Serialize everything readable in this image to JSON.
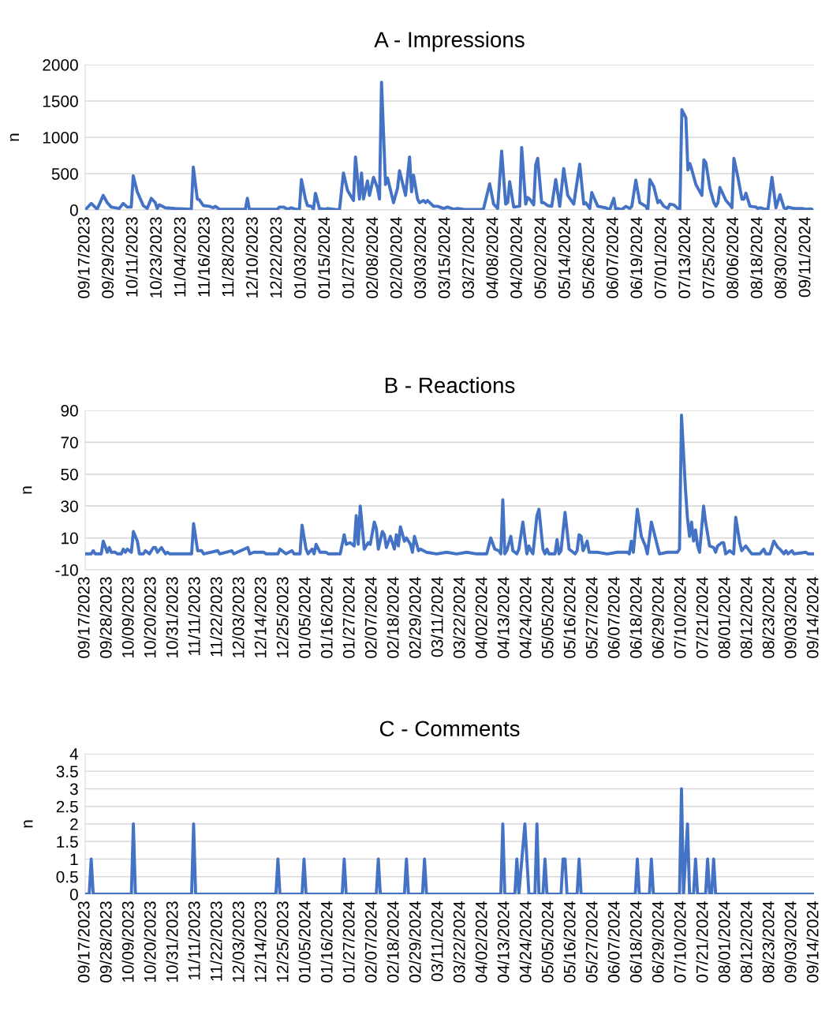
{
  "chart_data": [
    {
      "type": "line",
      "title": "A - Impressions",
      "ylabel": "n",
      "grid": "y",
      "xlim": [
        "2023-09-17",
        "2024-09-15"
      ],
      "ylim": [
        0,
        2000
      ],
      "yticks": [
        0,
        500,
        1000,
        1500,
        2000
      ],
      "xticks": [
        {
          "value": "2023-09-17",
          "label": "09/17/2023"
        },
        {
          "value": "2023-09-29",
          "label": "09/29/2023"
        },
        {
          "value": "2023-10-11",
          "label": "10/11/2023"
        },
        {
          "value": "2023-10-23",
          "label": "10/23/2023"
        },
        {
          "value": "2023-11-04",
          "label": "11/04/2023"
        },
        {
          "value": "2023-11-16",
          "label": "11/16/2023"
        },
        {
          "value": "2023-11-28",
          "label": "11/28/2023"
        },
        {
          "value": "2023-12-10",
          "label": "12/10/2023"
        },
        {
          "value": "2023-12-22",
          "label": "12/22/2023"
        },
        {
          "value": "2024-01-03",
          "label": "01/03/2024"
        },
        {
          "value": "2024-01-15",
          "label": "01/15/2024"
        },
        {
          "value": "2024-01-27",
          "label": "01/27/2024"
        },
        {
          "value": "2024-02-08",
          "label": "02/08/2024"
        },
        {
          "value": "2024-02-20",
          "label": "02/20/2024"
        },
        {
          "value": "2024-03-03",
          "label": "03/03/2024"
        },
        {
          "value": "2024-03-15",
          "label": "03/15/2024"
        },
        {
          "value": "2024-03-27",
          "label": "03/27/2024"
        },
        {
          "value": "2024-04-08",
          "label": "04/08/2024"
        },
        {
          "value": "2024-04-20",
          "label": "04/20/2024"
        },
        {
          "value": "2024-05-02",
          "label": "05/02/2024"
        },
        {
          "value": "2024-05-14",
          "label": "05/14/2024"
        },
        {
          "value": "2024-05-26",
          "label": "05/26/2024"
        },
        {
          "value": "2024-06-07",
          "label": "06/07/2024"
        },
        {
          "value": "2024-06-19",
          "label": "06/19/2024"
        },
        {
          "value": "2024-07-01",
          "label": "07/01/2024"
        },
        {
          "value": "2024-07-13",
          "label": "07/13/2024"
        },
        {
          "value": "2024-07-25",
          "label": "07/25/2024"
        },
        {
          "value": "2024-08-06",
          "label": "08/06/2024"
        },
        {
          "value": "2024-08-18",
          "label": "08/18/2024"
        },
        {
          "value": "2024-08-30",
          "label": "08/30/2024"
        },
        {
          "value": "2024-09-11",
          "label": "09/11/2024"
        }
      ],
      "series": [
        {
          "color": "#4472c4",
          "x": [
            "2023-09-17",
            "2023-09-20",
            "2023-09-23",
            "2023-09-26",
            "2023-09-28",
            "2023-09-30",
            "2023-10-04",
            "2023-10-06",
            "2023-10-08",
            "2023-10-10",
            "2023-10-11",
            "2023-10-13",
            "2023-10-16",
            "2023-10-18",
            "2023-10-20",
            "2023-10-22",
            "2023-10-23",
            "2023-10-24",
            "2023-10-27",
            "2023-11-01",
            "2023-11-09",
            "2023-11-10",
            "2023-11-12",
            "2023-11-13",
            "2023-11-15",
            "2023-11-18",
            "2023-11-20",
            "2023-11-21",
            "2023-11-23",
            "2023-12-06",
            "2023-12-07",
            "2023-12-08",
            "2023-12-22",
            "2023-12-23",
            "2023-12-25",
            "2023-12-27",
            "2023-12-29",
            "2023-12-31",
            "2024-01-02",
            "2024-01-03",
            "2024-01-05",
            "2024-01-06",
            "2024-01-08",
            "2024-01-09",
            "2024-01-10",
            "2024-01-12",
            "2024-01-15",
            "2024-01-16",
            "2024-01-19",
            "2024-01-22",
            "2024-01-24",
            "2024-01-26",
            "2024-01-29",
            "2024-01-30",
            "2024-02-01",
            "2024-02-02",
            "2024-02-03",
            "2024-02-05",
            "2024-02-06",
            "2024-02-08",
            "2024-02-10",
            "2024-02-11",
            "2024-02-12",
            "2024-02-14",
            "2024-02-15",
            "2024-02-18",
            "2024-02-20",
            "2024-02-21",
            "2024-02-24",
            "2024-02-26",
            "2024-02-27",
            "2024-02-28",
            "2024-03-01",
            "2024-03-02",
            "2024-03-04",
            "2024-03-05",
            "2024-03-06",
            "2024-03-09",
            "2024-03-11",
            "2024-03-14",
            "2024-03-16",
            "2024-03-19",
            "2024-03-21",
            "2024-03-24",
            "2024-04-02",
            "2024-04-03",
            "2024-04-06",
            "2024-04-08",
            "2024-04-10",
            "2024-04-12",
            "2024-04-14",
            "2024-04-15",
            "2024-04-16",
            "2024-04-18",
            "2024-04-21",
            "2024-04-22",
            "2024-04-24",
            "2024-04-25",
            "2024-04-26",
            "2024-04-28",
            "2024-04-29",
            "2024-04-30",
            "2024-05-02",
            "2024-05-03",
            "2024-05-05",
            "2024-05-07",
            "2024-05-09",
            "2024-05-11",
            "2024-05-13",
            "2024-05-15",
            "2024-05-18",
            "2024-05-20",
            "2024-05-21",
            "2024-05-23",
            "2024-05-24",
            "2024-05-26",
            "2024-05-27",
            "2024-05-30",
            "2024-06-03",
            "2024-06-05",
            "2024-06-07",
            "2024-06-08",
            "2024-06-09",
            "2024-06-11",
            "2024-06-13",
            "2024-06-15",
            "2024-06-16",
            "2024-06-18",
            "2024-06-20",
            "2024-06-23",
            "2024-06-24",
            "2024-06-25",
            "2024-06-27",
            "2024-06-29",
            "2024-06-30",
            "2024-07-02",
            "2024-07-04",
            "2024-07-05",
            "2024-07-07",
            "2024-07-09",
            "2024-07-10",
            "2024-07-11",
            "2024-07-13",
            "2024-07-14",
            "2024-07-15",
            "2024-07-16",
            "2024-07-18",
            "2024-07-19",
            "2024-07-21",
            "2024-07-22",
            "2024-07-23",
            "2024-07-25",
            "2024-07-27",
            "2024-07-28",
            "2024-07-29",
            "2024-07-30",
            "2024-08-02",
            "2024-08-04",
            "2024-08-05",
            "2024-08-06",
            "2024-08-08",
            "2024-08-10",
            "2024-08-11",
            "2024-08-12",
            "2024-08-14",
            "2024-08-17",
            "2024-08-18",
            "2024-08-19",
            "2024-08-21",
            "2024-08-23",
            "2024-08-25",
            "2024-08-27",
            "2024-08-29",
            "2024-08-31",
            "2024-09-01",
            "2024-09-02",
            "2024-09-05",
            "2024-09-09",
            "2024-09-11",
            "2024-09-13",
            "2024-09-14"
          ],
          "values": [
            0,
            90,
            10,
            200,
            100,
            40,
            20,
            90,
            40,
            40,
            470,
            250,
            60,
            20,
            160,
            100,
            20,
            70,
            30,
            20,
            10,
            590,
            150,
            140,
            60,
            50,
            30,
            50,
            10,
            10,
            160,
            10,
            10,
            40,
            40,
            10,
            30,
            10,
            10,
            420,
            150,
            60,
            50,
            10,
            230,
            20,
            10,
            20,
            10,
            0,
            510,
            270,
            130,
            730,
            150,
            510,
            150,
            400,
            200,
            450,
            300,
            150,
            1760,
            350,
            440,
            100,
            300,
            540,
            200,
            730,
            250,
            480,
            150,
            100,
            130,
            100,
            130,
            50,
            50,
            20,
            40,
            10,
            20,
            10,
            5,
            20,
            360,
            80,
            20,
            810,
            80,
            100,
            390,
            40,
            50,
            860,
            80,
            170,
            150,
            70,
            620,
            710,
            100,
            100,
            60,
            50,
            420,
            50,
            570,
            200,
            80,
            450,
            630,
            80,
            100,
            20,
            240,
            50,
            30,
            5,
            160,
            0,
            20,
            5,
            50,
            20,
            50,
            410,
            100,
            50,
            0,
            420,
            320,
            100,
            130,
            50,
            20,
            80,
            70,
            20,
            0,
            1380,
            1270,
            550,
            640,
            550,
            350,
            300,
            200,
            690,
            650,
            300,
            100,
            50,
            100,
            310,
            130,
            70,
            30,
            710,
            450,
            150,
            150,
            230,
            50,
            40,
            20,
            30,
            15,
            10,
            450,
            30,
            210,
            30,
            10,
            40,
            20,
            20,
            10,
            15,
            10
          ]
        }
      ]
    },
    {
      "type": "line",
      "title": "B - Reactions",
      "ylabel": "n",
      "grid": "y",
      "xlim": [
        "2023-09-17",
        "2024-09-14"
      ],
      "ylim": [
        -10,
        90
      ],
      "yticks": [
        -10,
        10,
        30,
        50,
        70,
        90
      ],
      "xticks": [
        {
          "value": "2023-09-17",
          "label": "09/17/2023"
        },
        {
          "value": "2023-09-28",
          "label": "09/28/2023"
        },
        {
          "value": "2023-10-09",
          "label": "10/09/2023"
        },
        {
          "value": "2023-10-20",
          "label": "10/20/2023"
        },
        {
          "value": "2023-10-31",
          "label": "10/31/2023"
        },
        {
          "value": "2023-11-11",
          "label": "11/11/2023"
        },
        {
          "value": "2023-11-22",
          "label": "11/22/2023"
        },
        {
          "value": "2023-12-03",
          "label": "12/03/2023"
        },
        {
          "value": "2023-12-14",
          "label": "12/14/2023"
        },
        {
          "value": "2023-12-25",
          "label": "12/25/2023"
        },
        {
          "value": "2024-01-05",
          "label": "01/05/2024"
        },
        {
          "value": "2024-01-16",
          "label": "01/16/2024"
        },
        {
          "value": "2024-01-27",
          "label": "01/27/2024"
        },
        {
          "value": "2024-02-07",
          "label": "02/07/2024"
        },
        {
          "value": "2024-02-18",
          "label": "02/18/2024"
        },
        {
          "value": "2024-02-29",
          "label": "02/29/2024"
        },
        {
          "value": "2024-03-11",
          "label": "03/11/2024"
        },
        {
          "value": "2024-03-22",
          "label": "03/22/2024"
        },
        {
          "value": "2024-04-02",
          "label": "04/02/2024"
        },
        {
          "value": "2024-04-13",
          "label": "04/13/2024"
        },
        {
          "value": "2024-04-24",
          "label": "04/24/2024"
        },
        {
          "value": "2024-05-05",
          "label": "05/05/2024"
        },
        {
          "value": "2024-05-16",
          "label": "05/16/2024"
        },
        {
          "value": "2024-05-27",
          "label": "05/27/2024"
        },
        {
          "value": "2024-06-07",
          "label": "06/07/2024"
        },
        {
          "value": "2024-06-18",
          "label": "06/18/2024"
        },
        {
          "value": "2024-06-29",
          "label": "06/29/2024"
        },
        {
          "value": "2024-07-10",
          "label": "07/10/2024"
        },
        {
          "value": "2024-07-21",
          "label": "07/21/2024"
        },
        {
          "value": "2024-08-01",
          "label": "08/01/2024"
        },
        {
          "value": "2024-08-12",
          "label": "08/12/2024"
        },
        {
          "value": "2024-08-23",
          "label": "08/23/2024"
        },
        {
          "value": "2024-09-03",
          "label": "09/03/2024"
        },
        {
          "value": "2024-09-14",
          "label": "09/14/2024"
        }
      ],
      "series": [
        {
          "color": "#4472c4",
          "x": [
            "2023-09-17",
            "2023-09-20",
            "2023-09-21",
            "2023-09-22",
            "2023-09-25",
            "2023-09-26",
            "2023-09-28",
            "2023-09-29",
            "2023-09-30",
            "2023-10-02",
            "2023-10-03",
            "2023-10-05",
            "2023-10-06",
            "2023-10-07",
            "2023-10-08",
            "2023-10-10",
            "2023-10-11",
            "2023-10-13",
            "2023-10-14",
            "2023-10-16",
            "2023-10-17",
            "2023-10-19",
            "2023-10-21",
            "2023-10-22",
            "2023-10-23",
            "2023-10-25",
            "2023-10-27",
            "2023-10-28",
            "2023-10-29",
            "2023-11-09",
            "2023-11-10",
            "2023-11-12",
            "2023-11-14",
            "2023-11-15",
            "2023-11-22",
            "2023-11-23",
            "2023-11-29",
            "2023-11-30",
            "2023-12-07",
            "2023-12-08",
            "2023-12-10",
            "2023-12-12",
            "2023-12-15",
            "2023-12-16",
            "2023-12-22",
            "2023-12-23",
            "2023-12-25",
            "2023-12-26",
            "2023-12-29",
            "2023-12-30",
            "2024-01-02",
            "2024-01-03",
            "2024-01-05",
            "2024-01-06",
            "2024-01-08",
            "2024-01-09",
            "2024-01-10",
            "2024-01-12",
            "2024-01-15",
            "2024-01-16",
            "2024-01-22",
            "2024-01-24",
            "2024-01-25",
            "2024-01-27",
            "2024-01-29",
            "2024-01-30",
            "2024-01-31",
            "2024-02-01",
            "2024-02-03",
            "2024-02-05",
            "2024-02-06",
            "2024-02-08",
            "2024-02-09",
            "2024-02-10",
            "2024-02-12",
            "2024-02-13",
            "2024-02-14",
            "2024-02-16",
            "2024-02-18",
            "2024-02-19",
            "2024-02-20",
            "2024-02-21",
            "2024-02-23",
            "2024-02-24",
            "2024-02-26",
            "2024-02-27",
            "2024-02-28",
            "2024-03-01",
            "2024-03-02",
            "2024-03-05",
            "2024-03-10",
            "2024-03-15",
            "2024-03-20",
            "2024-03-25",
            "2024-03-30",
            "2024-04-04",
            "2024-04-06",
            "2024-04-08",
            "2024-04-10",
            "2024-04-11",
            "2024-04-12",
            "2024-04-13",
            "2024-04-14",
            "2024-04-16",
            "2024-04-17",
            "2024-04-19",
            "2024-04-20",
            "2024-04-22",
            "2024-04-24",
            "2024-04-25",
            "2024-04-26",
            "2024-04-27",
            "2024-04-29",
            "2024-04-30",
            "2024-05-02",
            "2024-05-03",
            "2024-05-04",
            "2024-05-05",
            "2024-05-08",
            "2024-05-09",
            "2024-05-10",
            "2024-05-11",
            "2024-05-13",
            "2024-05-15",
            "2024-05-18",
            "2024-05-19",
            "2024-05-20",
            "2024-05-21",
            "2024-05-22",
            "2024-05-24",
            "2024-05-25",
            "2024-05-29",
            "2024-06-03",
            "2024-06-08",
            "2024-06-13",
            "2024-06-14",
            "2024-06-15",
            "2024-06-16",
            "2024-06-18",
            "2024-06-20",
            "2024-06-22",
            "2024-06-23",
            "2024-06-25",
            "2024-06-27",
            "2024-06-29",
            "2024-07-03",
            "2024-07-08",
            "2024-07-09",
            "2024-07-10",
            "2024-07-12",
            "2024-07-13",
            "2024-07-14",
            "2024-07-15",
            "2024-07-16",
            "2024-07-17",
            "2024-07-18",
            "2024-07-19",
            "2024-07-21",
            "2024-07-22",
            "2024-07-24",
            "2024-07-26",
            "2024-07-27",
            "2024-07-28",
            "2024-07-30",
            "2024-07-31",
            "2024-08-01",
            "2024-08-03",
            "2024-08-05",
            "2024-08-06",
            "2024-08-08",
            "2024-08-09",
            "2024-08-11",
            "2024-08-14",
            "2024-08-18",
            "2024-08-20",
            "2024-08-21",
            "2024-08-23",
            "2024-08-25",
            "2024-08-27",
            "2024-08-28",
            "2024-08-30",
            "2024-08-31",
            "2024-09-01",
            "2024-09-03",
            "2024-09-04",
            "2024-09-10",
            "2024-09-11",
            "2024-09-14"
          ],
          "values": [
            0,
            0,
            2,
            0,
            0,
            8,
            1,
            4,
            1,
            1,
            0,
            0,
            3,
            1,
            3,
            1,
            14,
            8,
            0,
            0,
            2,
            0,
            4,
            4,
            1,
            4,
            0,
            1,
            0,
            0,
            19,
            2,
            2,
            0,
            2,
            0,
            2,
            0,
            4,
            0,
            1,
            1,
            1,
            0,
            0,
            3,
            1,
            0,
            2,
            0,
            0,
            18,
            3,
            0,
            3,
            0,
            6,
            1,
            1,
            0,
            0,
            12,
            6,
            7,
            5,
            24,
            6,
            30,
            3,
            7,
            6,
            20,
            16,
            3,
            14,
            12,
            4,
            11,
            3,
            12,
            5,
            17,
            8,
            10,
            6,
            1,
            11,
            2,
            3,
            1,
            0,
            1,
            0,
            1,
            0,
            0,
            10,
            3,
            2,
            0,
            34,
            0,
            2,
            11,
            2,
            0,
            3,
            20,
            0,
            5,
            2,
            0,
            24,
            28,
            3,
            0,
            3,
            0,
            0,
            9,
            0,
            2,
            26,
            3,
            0,
            2,
            12,
            11,
            2,
            8,
            1,
            1,
            0,
            1,
            1,
            0,
            8,
            1,
            28,
            11,
            5,
            0,
            20,
            10,
            0,
            1,
            1,
            3,
            87,
            40,
            22,
            11,
            20,
            8,
            15,
            5,
            1,
            30,
            20,
            5,
            4,
            1,
            5,
            7,
            7,
            0,
            2,
            0,
            23,
            7,
            2,
            5,
            0,
            0,
            3,
            0,
            0,
            8,
            4,
            3,
            0,
            2,
            0,
            2,
            0,
            1,
            0,
            0
          ]
        }
      ]
    },
    {
      "type": "line",
      "title": "C - Comments",
      "ylabel": "n",
      "grid": "y",
      "xlim": [
        "2023-09-17",
        "2024-09-14"
      ],
      "ylim": [
        0,
        4
      ],
      "yticks": [
        0,
        0.5,
        1,
        1.5,
        2,
        2.5,
        3,
        3.5,
        4
      ],
      "xticks": [
        {
          "value": "2023-09-17",
          "label": "09/17/2023"
        },
        {
          "value": "2023-09-28",
          "label": "09/28/2023"
        },
        {
          "value": "2023-10-09",
          "label": "10/09/2023"
        },
        {
          "value": "2023-10-20",
          "label": "10/20/2023"
        },
        {
          "value": "2023-10-31",
          "label": "10/31/2023"
        },
        {
          "value": "2023-11-11",
          "label": "11/11/2023"
        },
        {
          "value": "2023-11-22",
          "label": "11/22/2023"
        },
        {
          "value": "2023-12-03",
          "label": "12/03/2023"
        },
        {
          "value": "2023-12-14",
          "label": "12/14/2023"
        },
        {
          "value": "2023-12-25",
          "label": "12/25/2023"
        },
        {
          "value": "2024-01-05",
          "label": "01/05/2024"
        },
        {
          "value": "2024-01-16",
          "label": "01/16/2024"
        },
        {
          "value": "2024-01-27",
          "label": "01/27/2024"
        },
        {
          "value": "2024-02-07",
          "label": "02/07/2024"
        },
        {
          "value": "2024-02-18",
          "label": "02/18/2024"
        },
        {
          "value": "2024-02-29",
          "label": "02/29/2024"
        },
        {
          "value": "2024-03-11",
          "label": "03/11/2024"
        },
        {
          "value": "2024-03-22",
          "label": "03/22/2024"
        },
        {
          "value": "2024-04-02",
          "label": "04/02/2024"
        },
        {
          "value": "2024-04-13",
          "label": "04/13/2024"
        },
        {
          "value": "2024-04-24",
          "label": "04/24/2024"
        },
        {
          "value": "2024-05-05",
          "label": "05/05/2024"
        },
        {
          "value": "2024-05-16",
          "label": "05/16/2024"
        },
        {
          "value": "2024-05-27",
          "label": "05/27/2024"
        },
        {
          "value": "2024-06-07",
          "label": "06/07/2024"
        },
        {
          "value": "2024-06-18",
          "label": "06/18/2024"
        },
        {
          "value": "2024-06-29",
          "label": "06/29/2024"
        },
        {
          "value": "2024-07-10",
          "label": "07/10/2024"
        },
        {
          "value": "2024-07-21",
          "label": "07/21/2024"
        },
        {
          "value": "2024-08-01",
          "label": "08/01/2024"
        },
        {
          "value": "2024-08-12",
          "label": "08/12/2024"
        },
        {
          "value": "2024-08-23",
          "label": "08/23/2024"
        },
        {
          "value": "2024-09-03",
          "label": "09/03/2024"
        },
        {
          "value": "2024-09-14",
          "label": "09/14/2024"
        }
      ],
      "series": [
        {
          "color": "#4472c4",
          "x": [
            "2023-09-17",
            "2023-09-19",
            "2023-09-20",
            "2023-09-21",
            "2023-10-10",
            "2023-10-11",
            "2023-10-12",
            "2023-11-09",
            "2023-11-10",
            "2023-11-11",
            "2023-12-21",
            "2023-12-22",
            "2023-12-23",
            "2024-01-03",
            "2024-01-04",
            "2024-01-05",
            "2024-01-23",
            "2024-01-24",
            "2024-01-25",
            "2024-02-09",
            "2024-02-10",
            "2024-02-11",
            "2024-02-23",
            "2024-02-24",
            "2024-02-25",
            "2024-03-03",
            "2024-03-04",
            "2024-03-05",
            "2024-04-11",
            "2024-04-12",
            "2024-04-13",
            "2024-04-18",
            "2024-04-19",
            "2024-04-20",
            "2024-04-23",
            "2024-04-25",
            "2024-04-28",
            "2024-04-29",
            "2024-04-30",
            "2024-05-02",
            "2024-05-03",
            "2024-05-04",
            "2024-05-11",
            "2024-05-12",
            "2024-05-13",
            "2024-05-14",
            "2024-05-19",
            "2024-05-20",
            "2024-05-21",
            "2024-06-17",
            "2024-06-18",
            "2024-06-19",
            "2024-06-24",
            "2024-06-25",
            "2024-06-26",
            "2024-07-09",
            "2024-07-10",
            "2024-07-11",
            "2024-07-13",
            "2024-07-14",
            "2024-07-16",
            "2024-07-17",
            "2024-07-18",
            "2024-07-22",
            "2024-07-23",
            "2024-07-24",
            "2024-07-25",
            "2024-07-26",
            "2024-07-27",
            "2024-09-14"
          ],
          "values": [
            0,
            0,
            1,
            0,
            0,
            2,
            0,
            0,
            2,
            0,
            0,
            1,
            0,
            0,
            1,
            0,
            0,
            1,
            0,
            0,
            1,
            0,
            0,
            1,
            0,
            0,
            1,
            0,
            0,
            2,
            0,
            0,
            1,
            0,
            2,
            0,
            0,
            2,
            0,
            0,
            1,
            0,
            0,
            1,
            1,
            0,
            0,
            1,
            0,
            0,
            1,
            0,
            0,
            1,
            0,
            0,
            3,
            0,
            2,
            0,
            0,
            1,
            0,
            0,
            1,
            0,
            0,
            1,
            0,
            0
          ]
        }
      ]
    }
  ]
}
